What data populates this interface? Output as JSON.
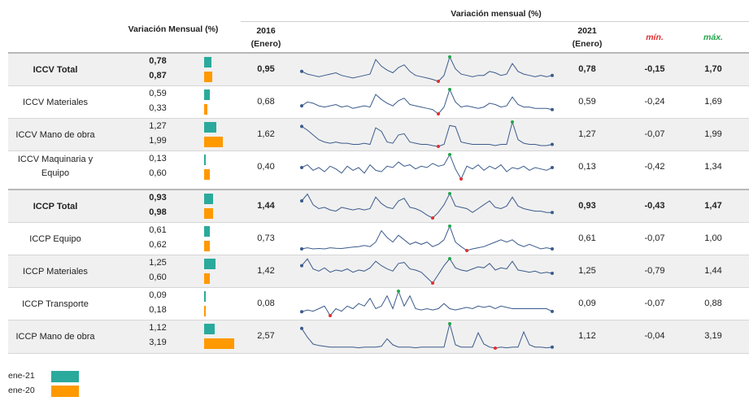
{
  "header": {
    "variacion_mensual_pct": "Variación Mensual (%)",
    "variacion_mensual_top": "Variación mensual (%)",
    "y2016": "2016",
    "y2016_sub": "(Enero)",
    "y2021": "2021",
    "y2021_sub": "(Enero)",
    "min": "mín.",
    "max": "máx."
  },
  "colors": {
    "ene21": "#2aaa9c",
    "ene20": "#ff9900",
    "min": "#e03030",
    "max": "#22a64a",
    "spark": "#3b5b8c"
  },
  "legend": [
    {
      "label": "ene-21",
      "color": "#2aaa9c"
    },
    {
      "label": "ene-20",
      "color": "#ff9900"
    }
  ],
  "chart_data": {
    "type": "table",
    "columns": [
      "",
      "Variación Mensual (%)",
      "2016 (Enero)",
      "Variación mensual (%)",
      "2021 (Enero)",
      "mín.",
      "máx."
    ],
    "bar_scale_max": 3.19,
    "rows": [
      {
        "label": "ICCV Total",
        "bold": true,
        "shade": true,
        "ene21": "0,78",
        "ene20": "0,87",
        "v21": 0.78,
        "v20": 0.87,
        "y2016": "0,95",
        "y2021": "0,78",
        "min": "-0,15",
        "max": "1,70",
        "spark": [
          0.6,
          0.4,
          0.3,
          0.2,
          0.3,
          0.4,
          0.5,
          0.3,
          0.2,
          0.1,
          0.2,
          0.3,
          0.4,
          1.5,
          1.0,
          0.7,
          0.5,
          0.9,
          1.1,
          0.6,
          0.3,
          0.2,
          0.1,
          0.0,
          -0.15,
          0.3,
          1.7,
          0.8,
          0.4,
          0.3,
          0.2,
          0.3,
          0.3,
          0.6,
          0.5,
          0.3,
          0.4,
          1.2,
          0.6,
          0.4,
          0.3,
          0.2,
          0.3,
          0.2,
          0.3
        ]
      },
      {
        "label": "ICCV Materiales",
        "bold": false,
        "shade": false,
        "ene21": "0,59",
        "ene20": "0,33",
        "v21": 0.59,
        "v20": 0.33,
        "y2016": "0,68",
        "y2021": "0,59",
        "min": "-0,24",
        "max": "1,69",
        "spark": [
          0.4,
          0.7,
          0.6,
          0.4,
          0.3,
          0.4,
          0.5,
          0.3,
          0.4,
          0.2,
          0.3,
          0.4,
          0.3,
          1.3,
          0.9,
          0.6,
          0.4,
          0.8,
          1.0,
          0.5,
          0.4,
          0.3,
          0.2,
          0.1,
          -0.24,
          0.3,
          1.69,
          0.7,
          0.3,
          0.4,
          0.3,
          0.2,
          0.3,
          0.6,
          0.5,
          0.3,
          0.4,
          1.1,
          0.5,
          0.3,
          0.3,
          0.2,
          0.2,
          0.2,
          0.1
        ]
      },
      {
        "label": "ICCV Mano de obra",
        "bold": false,
        "shade": true,
        "ene21": "1,27",
        "ene20": "1,99",
        "v21": 1.27,
        "v20": 1.99,
        "y2016": "1,62",
        "y2021": "1,27",
        "min": "-0,07",
        "max": "1,99",
        "spark": [
          1.62,
          1.3,
          0.9,
          0.5,
          0.3,
          0.2,
          0.3,
          0.2,
          0.2,
          0.1,
          0.1,
          0.2,
          0.1,
          1.5,
          1.2,
          0.3,
          0.2,
          0.9,
          1.0,
          0.3,
          0.2,
          0.1,
          0.1,
          0.0,
          -0.07,
          0.1,
          1.7,
          1.6,
          0.3,
          0.2,
          0.1,
          0.1,
          0.1,
          0.1,
          0.0,
          0.1,
          0.1,
          1.99,
          0.5,
          0.2,
          0.1,
          0.1,
          0.0,
          0.0,
          0.1
        ]
      },
      {
        "label": "ICCV Maquinaria y Equipo",
        "bold": false,
        "shade": false,
        "ene21": "0,13",
        "ene20": "0,60",
        "v21": 0.13,
        "v20": 0.6,
        "y2016": "0,40",
        "y2021": "0,13",
        "min": "-0,42",
        "max": "1,34",
        "spark": [
          0.4,
          0.6,
          0.2,
          0.4,
          0.1,
          0.5,
          0.3,
          0.0,
          0.5,
          0.2,
          0.4,
          0.0,
          0.6,
          0.2,
          0.1,
          0.5,
          0.4,
          0.8,
          0.5,
          0.6,
          0.3,
          0.5,
          0.4,
          0.7,
          0.5,
          0.6,
          1.34,
          0.3,
          -0.42,
          0.5,
          0.3,
          0.6,
          0.2,
          0.5,
          0.3,
          0.6,
          0.1,
          0.4,
          0.3,
          0.5,
          0.2,
          0.4,
          0.3,
          0.2,
          0.4
        ]
      },
      {
        "label": "ICCP Total",
        "bold": true,
        "shade": true,
        "ene21": "0,93",
        "ene20": "0,98",
        "v21": 0.93,
        "v20": 0.98,
        "y2016": "1,44",
        "y2021": "0,93",
        "min": "-0,43",
        "max": "1,47",
        "spark": [
          0.9,
          1.44,
          0.6,
          0.3,
          0.4,
          0.2,
          0.1,
          0.4,
          0.3,
          0.2,
          0.3,
          0.2,
          0.3,
          1.2,
          0.7,
          0.4,
          0.3,
          0.9,
          1.1,
          0.4,
          0.3,
          0.1,
          -0.2,
          -0.43,
          0.0,
          0.6,
          1.47,
          0.5,
          0.4,
          0.3,
          0.0,
          0.3,
          0.6,
          0.9,
          0.4,
          0.3,
          0.5,
          1.2,
          0.5,
          0.3,
          0.2,
          0.1,
          0.1,
          0.0,
          0.0
        ]
      },
      {
        "label": "ICCP Equipo",
        "bold": false,
        "shade": false,
        "ene21": "0,61",
        "ene20": "0,62",
        "v21": 0.61,
        "v20": 0.62,
        "y2016": "0,73",
        "y2021": "0,61",
        "min": "-0,07",
        "max": "1,00",
        "spark": [
          0.0,
          0.05,
          0.0,
          0.02,
          0.0,
          0.05,
          0.03,
          0.02,
          0.05,
          0.08,
          0.1,
          0.15,
          0.1,
          0.3,
          0.8,
          0.5,
          0.3,
          0.6,
          0.4,
          0.2,
          0.3,
          0.2,
          0.3,
          0.1,
          0.2,
          0.4,
          1.0,
          0.3,
          0.1,
          -0.07,
          0.0,
          0.05,
          0.1,
          0.2,
          0.3,
          0.4,
          0.3,
          0.4,
          0.2,
          0.1,
          0.2,
          0.1,
          0.0,
          0.05,
          0.0
        ]
      },
      {
        "label": "ICCP Materiales",
        "bold": false,
        "shade": true,
        "ene21": "1,25",
        "ene20": "0,60",
        "v21": 1.25,
        "v20": 0.6,
        "y2016": "1,42",
        "y2021": "1,25",
        "min": "-0,79",
        "max": "1,44",
        "spark": [
          0.8,
          1.42,
          0.5,
          0.3,
          0.6,
          0.2,
          0.4,
          0.3,
          0.5,
          0.2,
          0.4,
          0.3,
          0.6,
          1.2,
          0.8,
          0.5,
          0.3,
          1.0,
          1.1,
          0.5,
          0.4,
          0.2,
          -0.3,
          -0.79,
          0.0,
          0.8,
          1.44,
          0.6,
          0.4,
          0.3,
          0.5,
          0.7,
          0.6,
          1.0,
          0.4,
          0.6,
          0.5,
          1.2,
          0.4,
          0.3,
          0.2,
          0.3,
          0.1,
          0.2,
          0.1
        ]
      },
      {
        "label": "ICCP Transporte",
        "bold": false,
        "shade": false,
        "ene21": "0,09",
        "ene20": "0,18",
        "v21": 0.09,
        "v20": 0.18,
        "y2016": "0,08",
        "y2021": "0,09",
        "min": "-0,07",
        "max": "0,88",
        "spark": [
          0.08,
          0.15,
          0.1,
          0.2,
          0.3,
          -0.07,
          0.2,
          0.1,
          0.3,
          0.2,
          0.4,
          0.3,
          0.6,
          0.2,
          0.3,
          0.7,
          0.2,
          0.88,
          0.3,
          0.7,
          0.2,
          0.15,
          0.2,
          0.15,
          0.2,
          0.4,
          0.2,
          0.15,
          0.2,
          0.25,
          0.2,
          0.3,
          0.25,
          0.3,
          0.2,
          0.3,
          0.25,
          0.2,
          0.2,
          0.2,
          0.2,
          0.2,
          0.2,
          0.2,
          0.09
        ]
      },
      {
        "label": "ICCP Mano de obra",
        "bold": false,
        "shade": true,
        "ene21": "1,12",
        "ene20": "3,19",
        "v21": 1.12,
        "v20": 3.19,
        "y2016": "2,57",
        "y2021": "1,12",
        "min": "-0,04",
        "max": "3,19",
        "spark": [
          2.57,
          1.4,
          0.5,
          0.3,
          0.2,
          0.1,
          0.1,
          0.1,
          0.1,
          0.1,
          0.0,
          0.1,
          0.1,
          0.1,
          0.2,
          1.2,
          0.4,
          0.1,
          0.1,
          0.1,
          0.0,
          0.1,
          0.1,
          0.1,
          0.1,
          0.1,
          3.19,
          0.4,
          0.1,
          0.1,
          0.1,
          2.0,
          0.5,
          0.1,
          -0.04,
          0.1,
          0.0,
          0.1,
          0.1,
          2.1,
          0.4,
          0.1,
          0.1,
          0.0,
          0.1
        ]
      }
    ]
  }
}
